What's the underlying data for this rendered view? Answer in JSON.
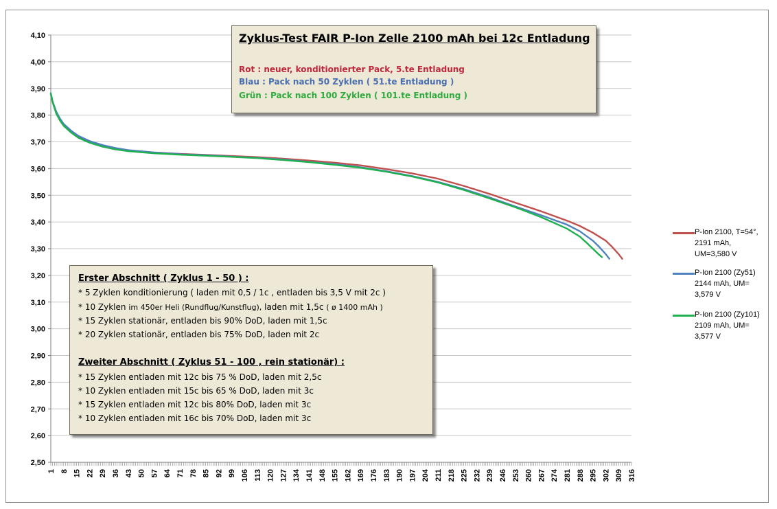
{
  "chart_data": {
    "type": "line",
    "title": "Zyklus-Test   FAIR P-Ion Zelle 2100 mAh bei 12c Entladung",
    "xlabel": "",
    "ylabel": "",
    "ylim": [
      2.5,
      4.1
    ],
    "y_ticks": [
      "4,10",
      "4,00",
      "3,90",
      "3,80",
      "3,70",
      "3,60",
      "3,50",
      "3,40",
      "3,30",
      "3,20",
      "3,10",
      "3,00",
      "2,90",
      "2,80",
      "2,70",
      "2,60",
      "2,50"
    ],
    "x_ticks": [
      "1",
      "8",
      "15",
      "22",
      "29",
      "36",
      "43",
      "50",
      "57",
      "64",
      "71",
      "78",
      "85",
      "92",
      "99",
      "106",
      "113",
      "120",
      "127",
      "134",
      "141",
      "148",
      "155",
      "162",
      "169",
      "176",
      "183",
      "190",
      "197",
      "204",
      "211",
      "218",
      "225",
      "232",
      "239",
      "246",
      "253",
      "260",
      "267",
      "274",
      "281",
      "288",
      "295",
      "302",
      "309",
      "316"
    ],
    "xlim": [
      1,
      316
    ],
    "grid": true,
    "legend_position": "right",
    "series": [
      {
        "name": "P-Ion 2100, T=54°, 2191 mAh, UM=3,580 V",
        "color": "#c0504d",
        "points": [
          [
            1,
            3.88
          ],
          [
            2,
            3.85
          ],
          [
            4,
            3.81
          ],
          [
            6,
            3.785
          ],
          [
            8,
            3.765
          ],
          [
            12,
            3.74
          ],
          [
            16,
            3.72
          ],
          [
            22,
            3.7
          ],
          [
            29,
            3.685
          ],
          [
            36,
            3.675
          ],
          [
            43,
            3.668
          ],
          [
            57,
            3.66
          ],
          [
            71,
            3.655
          ],
          [
            85,
            3.651
          ],
          [
            99,
            3.647
          ],
          [
            113,
            3.643
          ],
          [
            127,
            3.637
          ],
          [
            141,
            3.63
          ],
          [
            155,
            3.622
          ],
          [
            169,
            3.612
          ],
          [
            183,
            3.598
          ],
          [
            197,
            3.582
          ],
          [
            211,
            3.562
          ],
          [
            225,
            3.535
          ],
          [
            239,
            3.505
          ],
          [
            253,
            3.472
          ],
          [
            267,
            3.44
          ],
          [
            281,
            3.405
          ],
          [
            288,
            3.385
          ],
          [
            295,
            3.36
          ],
          [
            302,
            3.33
          ],
          [
            305,
            3.31
          ],
          [
            309,
            3.28
          ],
          [
            311,
            3.262
          ]
        ]
      },
      {
        "name": "P-Ion 2100 (Zy51) 2144 mAh, UM= 3,579 V",
        "color": "#4f81bd",
        "points": [
          [
            1,
            3.88
          ],
          [
            2,
            3.85
          ],
          [
            4,
            3.812
          ],
          [
            6,
            3.787
          ],
          [
            8,
            3.767
          ],
          [
            12,
            3.742
          ],
          [
            16,
            3.722
          ],
          [
            22,
            3.703
          ],
          [
            29,
            3.688
          ],
          [
            36,
            3.677
          ],
          [
            43,
            3.669
          ],
          [
            57,
            3.66
          ],
          [
            71,
            3.654
          ],
          [
            85,
            3.65
          ],
          [
            99,
            3.645
          ],
          [
            113,
            3.64
          ],
          [
            127,
            3.634
          ],
          [
            141,
            3.625
          ],
          [
            155,
            3.617
          ],
          [
            169,
            3.605
          ],
          [
            183,
            3.59
          ],
          [
            197,
            3.572
          ],
          [
            211,
            3.55
          ],
          [
            225,
            3.523
          ],
          [
            239,
            3.492
          ],
          [
            253,
            3.458
          ],
          [
            267,
            3.425
          ],
          [
            281,
            3.39
          ],
          [
            288,
            3.365
          ],
          [
            295,
            3.33
          ],
          [
            298,
            3.31
          ],
          [
            302,
            3.28
          ],
          [
            304,
            3.262
          ]
        ]
      },
      {
        "name": "P-Ion 2100 (Zy101) 2109 mAh, UM= 3,577 V",
        "color": "#1fb050",
        "points": [
          [
            1,
            3.882
          ],
          [
            2,
            3.848
          ],
          [
            4,
            3.805
          ],
          [
            6,
            3.78
          ],
          [
            8,
            3.76
          ],
          [
            12,
            3.735
          ],
          [
            16,
            3.715
          ],
          [
            22,
            3.697
          ],
          [
            29,
            3.682
          ],
          [
            36,
            3.672
          ],
          [
            43,
            3.665
          ],
          [
            57,
            3.657
          ],
          [
            71,
            3.652
          ],
          [
            85,
            3.648
          ],
          [
            99,
            3.644
          ],
          [
            113,
            3.639
          ],
          [
            127,
            3.632
          ],
          [
            141,
            3.624
          ],
          [
            155,
            3.614
          ],
          [
            169,
            3.603
          ],
          [
            183,
            3.588
          ],
          [
            197,
            3.57
          ],
          [
            211,
            3.548
          ],
          [
            225,
            3.52
          ],
          [
            239,
            3.488
          ],
          [
            253,
            3.455
          ],
          [
            267,
            3.418
          ],
          [
            281,
            3.375
          ],
          [
            288,
            3.345
          ],
          [
            292,
            3.32
          ],
          [
            295,
            3.3
          ],
          [
            298,
            3.28
          ],
          [
            300,
            3.268
          ]
        ]
      }
    ]
  },
  "title_box": {
    "title": "Zyklus-Test   FAIR P-Ion Zelle 2100 mAh bei 12c Entladung",
    "lines": [
      {
        "text": "Rot :    neuer, konditionierter Pack, 5.te Entladung",
        "color": "#c0273a"
      },
      {
        "text": "Blau :  Pack nach 50 Zyklen ( 51.te Entladung )",
        "color": "#4a6fb0"
      },
      {
        "text": "Grün : Pack nach 100 Zyklen ( 101.te Entladung )",
        "color": "#2eab3e"
      }
    ]
  },
  "info_box": {
    "section1_head": "Erster Abschnitt ( Zyklus 1 - 50 ) :",
    "s1_item1": "* 5 Zyklen konditionierung ( laden mit 0,5 / 1c , entladen bis 3,5 V mit 2c )",
    "s1_item2_a": "* 10 Zyklen ",
    "s1_item2_b": "im 450er Heli (Rundflug/Kunstflug),",
    "s1_item2_c": " laden mit 1,5c ",
    "s1_item2_d": "( ø 1400 mAh )",
    "s1_item3": "* 15 Zyklen stationär, entladen bis 90% DoD, laden mit 1,5c",
    "s1_item4": "* 20 Zyklen stationär, entladen bis 75% DoD, laden mit 2c",
    "section2_head": "Zweiter Abschnitt ( Zyklus 51 - 100 , rein stationär) :",
    "s2_item1": "* 15 Zyklen entladen mit 12c bis 75 % DoD, laden mit 2,5c",
    "s2_item2": "* 10 Zyklen entladen mit 15c bis 65 % DoD, laden mit 3c",
    "s2_item3": "* 15 Zyklen entladen mit 12c bis 80% DoD, laden mit 3c",
    "s2_item4": "* 10 Zyklen entladen mit 16c bis 70% DoD, laden mit 3c"
  },
  "legend": [
    {
      "line1": "P-Ion 2100, T=54°,",
      "line2": "2191 mAh,",
      "line3": "UM=3,580 V",
      "color": "#c0504d"
    },
    {
      "line1": "P-Ion 2100 (Zy51)",
      "line2": "2144 mAh, UM=",
      "line3": "3,579 V",
      "color": "#4f81bd"
    },
    {
      "line1": "P-Ion 2100 (Zy101)",
      "line2": "2109 mAh, UM=",
      "line3": "3,577 V",
      "color": "#1fb050"
    }
  ]
}
